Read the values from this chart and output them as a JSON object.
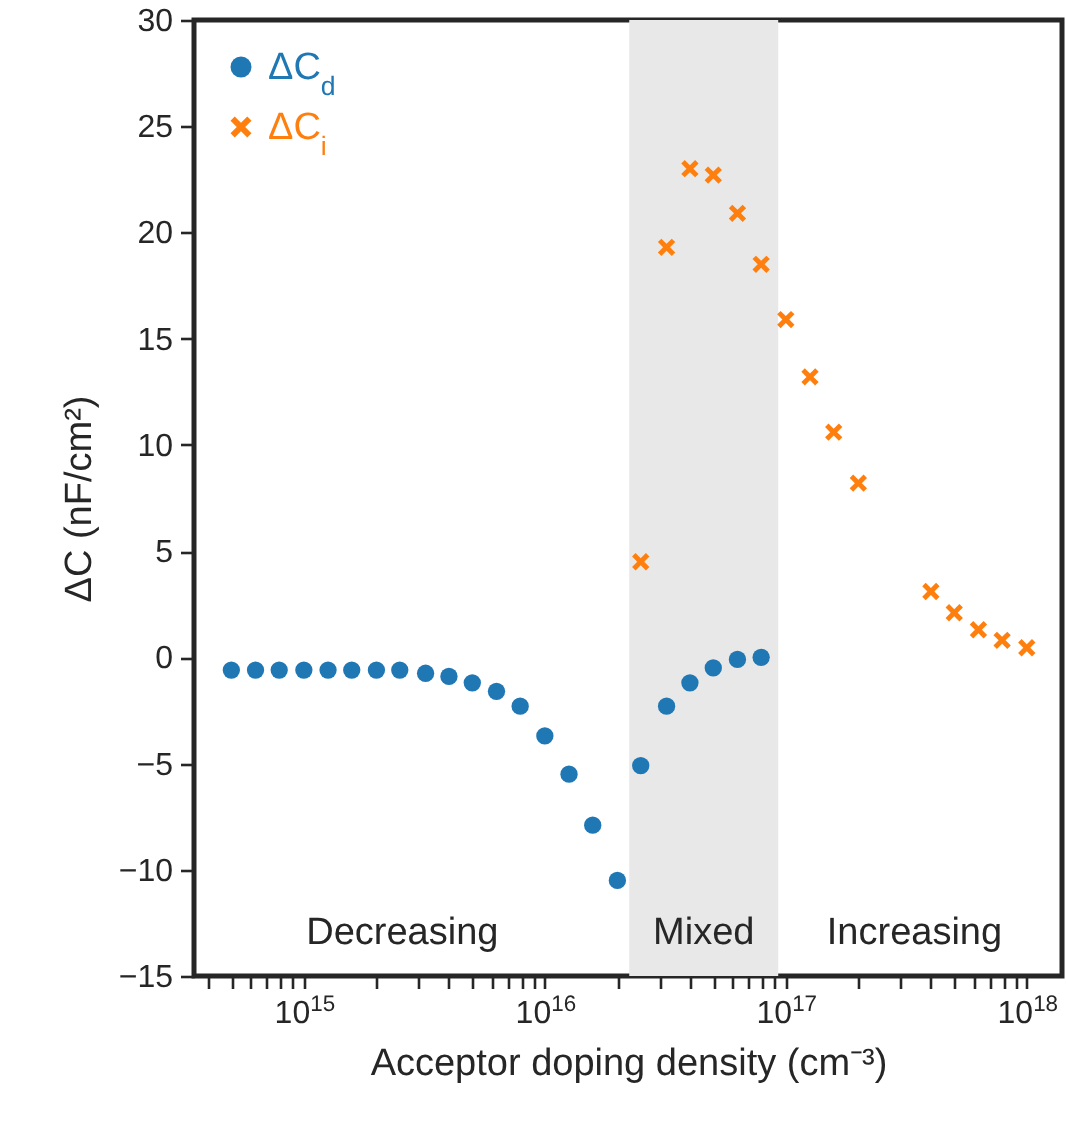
{
  "chart_data": {
    "type": "scatter",
    "xlabel": "Acceptor doping density (cm⁻³)",
    "ylabel": "ΔC (nF/cm²)",
    "log": "x",
    "xlim": [
      350000000000000.0,
      1.4e+18
    ],
    "ylim": [
      -15,
      30
    ],
    "xticks": [
      {
        "value": 400000000000000.0,
        "label": null
      },
      {
        "value": 500000000000000.0,
        "label": null
      },
      {
        "value": 600000000000000.0,
        "label": null
      },
      {
        "value": 700000000000000.0,
        "label": null
      },
      {
        "value": 800000000000000.0,
        "label": null
      },
      {
        "value": 900000000000000.0,
        "label": null
      },
      {
        "value": 1000000000000000.0,
        "label": "10$^{15}$"
      },
      {
        "value": 2000000000000000.0,
        "label": null
      },
      {
        "value": 3000000000000000.0,
        "label": null
      },
      {
        "value": 4000000000000000.0,
        "label": null
      },
      {
        "value": 5000000000000000.0,
        "label": null
      },
      {
        "value": 6000000000000000.0,
        "label": null
      },
      {
        "value": 7000000000000000.0,
        "label": null
      },
      {
        "value": 8000000000000000.0,
        "label": null
      },
      {
        "value": 9000000000000000.0,
        "label": null
      },
      {
        "value": 1e+16,
        "label": "10$^{16}$"
      },
      {
        "value": 2e+16,
        "label": null
      },
      {
        "value": 3e+16,
        "label": null
      },
      {
        "value": 4e+16,
        "label": null
      },
      {
        "value": 5e+16,
        "label": null
      },
      {
        "value": 6e+16,
        "label": null
      },
      {
        "value": 7e+16,
        "label": null
      },
      {
        "value": 8e+16,
        "label": null
      },
      {
        "value": 9e+16,
        "label": null
      },
      {
        "value": 1e+17,
        "label": "10$^{17}$"
      },
      {
        "value": 2e+17,
        "label": null
      },
      {
        "value": 3e+17,
        "label": null
      },
      {
        "value": 4e+17,
        "label": null
      },
      {
        "value": 5e+17,
        "label": null
      },
      {
        "value": 6e+17,
        "label": null
      },
      {
        "value": 7e+17,
        "label": null
      },
      {
        "value": 8e+17,
        "label": null
      },
      {
        "value": 9e+17,
        "label": null
      },
      {
        "value": 1e+18,
        "label": "10$^{18}$"
      }
    ],
    "yticks": [
      -15,
      -10,
      -5,
      0,
      5,
      10,
      15,
      20,
      25,
      30
    ],
    "grid": false,
    "legend": "top left",
    "bands": [
      {
        "axis": "x",
        "from": 2.24e+16,
        "to": 9.3e+16,
        "label": "Mixed",
        "color": "#e8e8e8"
      }
    ],
    "annotations": [
      "Decreasing",
      "Increasing"
    ],
    "series": [
      {
        "name": "ΔC$_{d}$",
        "color": "#1f77b4",
        "marker": "circle",
        "x": [
          500000000000000.0,
          630000000000000.0,
          790000000000000.0,
          1000000000000000.0,
          1260000000000000.0,
          1580000000000000.0,
          2000000000000000.0,
          2500000000000000.0,
          3200000000000000.0,
          4000000000000000.0,
          5000000000000000.0,
          6300000000000000.0,
          7900000000000000.0,
          1e+16,
          1.26e+16,
          1.58e+16,
          2e+16,
          2.5e+16,
          3.2e+16,
          4e+16,
          5e+16,
          6.3e+16,
          7.9e+16
        ],
        "values": [
          -0.6,
          -0.6,
          -0.6,
          -0.6,
          -0.6,
          -0.6,
          -0.6,
          -0.6,
          -0.75,
          -0.9,
          -1.2,
          -1.6,
          -2.3,
          -3.7,
          -5.5,
          -7.9,
          -10.5,
          -5.1,
          -2.3,
          -1.2,
          -0.5,
          -0.1,
          0.0
        ]
      },
      {
        "name": "ΔC$_{i}$",
        "color": "#ff7f0e",
        "marker": "cross",
        "x": [
          2.5e+16,
          3.2e+16,
          4e+16,
          5e+16,
          6.3e+16,
          7.9e+16,
          1e+17,
          1.26e+17,
          1.58e+17,
          2e+17,
          4e+17,
          5e+17,
          6.3e+17,
          7.9e+17,
          1e+18
        ],
        "values": [
          4.5,
          19.3,
          23.0,
          22.7,
          20.9,
          18.5,
          15.9,
          13.2,
          10.6,
          8.2,
          3.1,
          2.1,
          1.3,
          0.8,
          0.45
        ]
      }
    ]
  }
}
